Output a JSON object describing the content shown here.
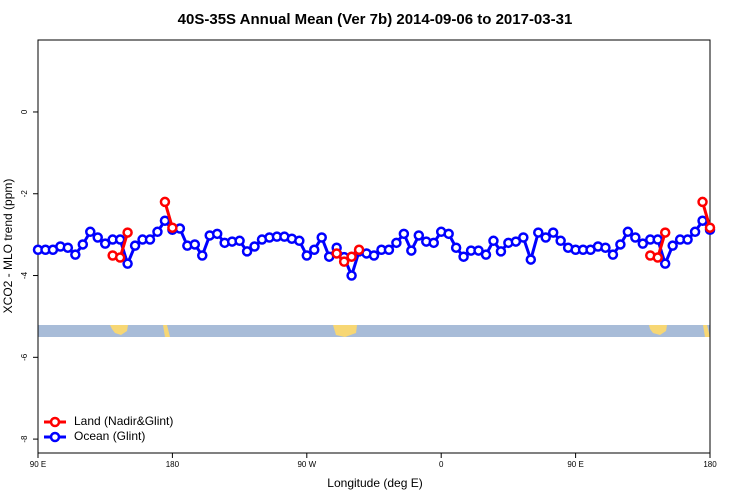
{
  "chart_data": {
    "type": "line",
    "title": "40S-35S Annual Mean (Ver 7b)   2014-09-06 to 2017-03-31",
    "x_label": "Longitude (deg E)",
    "y_label": "XCO2 - MLO trend (ppm)",
    "xlim": [
      90,
      540
    ],
    "xticks": [
      {
        "value": 90,
        "label": "90 E"
      },
      {
        "value": 180,
        "label": "180"
      },
      {
        "value": 270,
        "label": "90 W"
      },
      {
        "value": 360,
        "label": "0"
      },
      {
        "value": 450,
        "label": "90 E"
      },
      {
        "value": 540,
        "label": "180"
      }
    ],
    "ylim": [
      -8.34,
      1.76
    ],
    "yticks": [
      0,
      -2,
      -4,
      -6,
      -8
    ],
    "legend": "lower left",
    "x": [
      90,
      95,
      100,
      105,
      110,
      115,
      120,
      125,
      130,
      135,
      140,
      145,
      150,
      155,
      160,
      165,
      170,
      175,
      180,
      185,
      190,
      195,
      200,
      205,
      210,
      215,
      220,
      225,
      230,
      235,
      240,
      245,
      250,
      255,
      260,
      265,
      270,
      275,
      280,
      285,
      290,
      295,
      300,
      305,
      310,
      315,
      320,
      325,
      330,
      335,
      340,
      345,
      350,
      355,
      360,
      365,
      370,
      375,
      380,
      385,
      390,
      395,
      400,
      405,
      410,
      415,
      420,
      425,
      430,
      435,
      440,
      445,
      450,
      455,
      460,
      465,
      470,
      475,
      480,
      485,
      490,
      495,
      500,
      505,
      510,
      515,
      520,
      525,
      530,
      535,
      540
    ],
    "series": [
      {
        "name": "Land (Nadir&Glint)",
        "color": "#ff0000",
        "values": [
          null,
          null,
          null,
          null,
          null,
          null,
          null,
          null,
          null,
          null,
          -3.51,
          -3.56,
          -2.95,
          null,
          null,
          null,
          null,
          -2.2,
          -2.83,
          null,
          null,
          null,
          null,
          null,
          null,
          null,
          null,
          null,
          null,
          null,
          null,
          null,
          null,
          null,
          null,
          null,
          null,
          null,
          null,
          null,
          -3.46,
          -3.66,
          -3.54,
          -3.37,
          null,
          null,
          null,
          null,
          null,
          null,
          null,
          null,
          null,
          null,
          null,
          null,
          null,
          null,
          null,
          null,
          null,
          null,
          null,
          null,
          null,
          null,
          null,
          null,
          null,
          null,
          null,
          null,
          null,
          null,
          null,
          null,
          null,
          null,
          null,
          null,
          null,
          null,
          -3.51,
          -3.56,
          -2.95,
          null,
          null,
          null,
          null,
          -2.2,
          -2.83
        ]
      },
      {
        "name": "Ocean (Glint)",
        "color": "#0000ff",
        "values": [
          -3.37,
          -3.37,
          -3.37,
          -3.29,
          -3.32,
          -3.49,
          -3.24,
          -2.93,
          -3.07,
          -3.22,
          -3.12,
          -3.12,
          -3.71,
          -3.27,
          -3.12,
          -3.12,
          -2.93,
          -2.66,
          -2.88,
          -2.85,
          -3.27,
          -3.24,
          -3.51,
          -3.02,
          -2.98,
          -3.2,
          -3.17,
          -3.15,
          -3.41,
          -3.29,
          -3.12,
          -3.07,
          -3.05,
          -3.05,
          -3.1,
          -3.15,
          -3.51,
          -3.37,
          -3.07,
          -3.54,
          -3.32,
          -3.55,
          -4,
          -3.41,
          -3.46,
          -3.51,
          -3.37,
          -3.37,
          -3.2,
          -2.98,
          -3.39,
          -3.02,
          -3.17,
          -3.2,
          -2.93,
          -2.98,
          -3.32,
          -3.54,
          -3.39,
          -3.39,
          -3.49,
          -3.15,
          -3.41,
          -3.2,
          -3.17,
          -3.07,
          -3.61,
          -2.95,
          -3.07,
          -2.95,
          -3.15,
          -3.32,
          -3.37,
          -3.37,
          -3.37,
          -3.29,
          -3.32,
          -3.49,
          -3.24,
          -2.93,
          -3.07,
          -3.22,
          -3.12,
          -3.12,
          -3.71,
          -3.27,
          -3.12,
          -3.12,
          -2.93,
          -2.66,
          -2.88
        ]
      }
    ]
  }
}
